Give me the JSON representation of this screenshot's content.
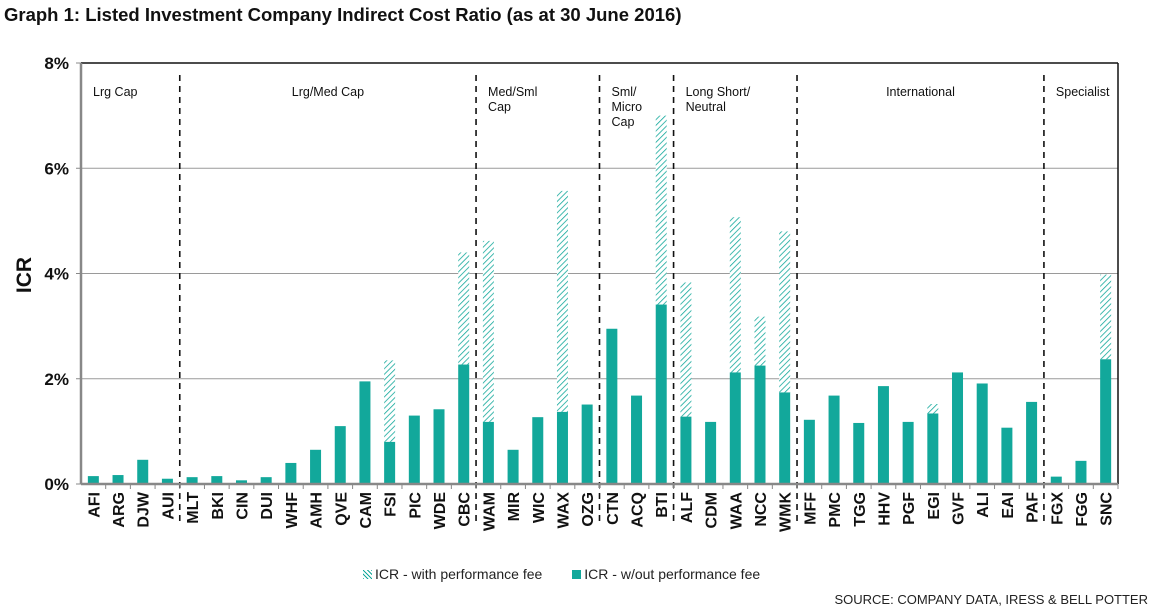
{
  "title": "Graph 1: Listed Investment Company Indirect Cost Ratio (as at 30 June 2016)",
  "source": "SOURCE: COMPANY DATA, IRESS & BELL POTTER",
  "colors": {
    "bar": "#12A89B",
    "hatch": "#12A89B",
    "grid": "#9a9a9a",
    "axis": "#888888",
    "divider": "#111111"
  },
  "chart_data": {
    "type": "bar",
    "title": "Graph 1: Listed Investment Company Indirect Cost Ratio (as at 30 June 2016)",
    "xlabel": "",
    "ylabel": "ICR",
    "ylim": [
      0,
      8
    ],
    "yticks": [
      "0%",
      "2%",
      "4%",
      "6%",
      "8%"
    ],
    "ytick_values": [
      0,
      2,
      4,
      6,
      8
    ],
    "grid": true,
    "legend_position": "bottom",
    "legend": [
      "ICR - with performance fee",
      "ICR - w/out performance fee"
    ],
    "categories": [
      "AFI",
      "ARG",
      "DJW",
      "AUI",
      "MLT",
      "BKI",
      "CIN",
      "DUI",
      "WHF",
      "AMH",
      "QVE",
      "CAM",
      "FSI",
      "PIC",
      "WDE",
      "CBC",
      "WAM",
      "MIR",
      "WIC",
      "WAX",
      "OZG",
      "CTN",
      "ACQ",
      "BTI",
      "ALF",
      "CDM",
      "WAA",
      "NCC",
      "WMK",
      "MFF",
      "PMC",
      "TGG",
      "HHV",
      "PGF",
      "EGI",
      "GVF",
      "ALI",
      "EAI",
      "PAF",
      "FGX",
      "FGG",
      "SNC"
    ],
    "series": [
      {
        "name": "ICR - w/out performance fee",
        "style": "solid",
        "values": [
          0.15,
          0.17,
          0.46,
          0.1,
          0.13,
          0.15,
          0.07,
          0.13,
          0.4,
          0.65,
          1.1,
          1.95,
          0.8,
          1.3,
          1.42,
          2.27,
          1.18,
          0.65,
          1.27,
          1.37,
          1.51,
          2.95,
          1.68,
          3.41,
          1.28,
          1.18,
          2.12,
          2.25,
          1.74,
          1.22,
          1.68,
          1.16,
          1.86,
          1.18,
          1.34,
          2.12,
          1.91,
          1.07,
          1.56,
          0.14,
          0.44,
          2.37
        ]
      },
      {
        "name": "ICR - with performance fee",
        "style": "hatched",
        "values": [
          null,
          null,
          null,
          null,
          null,
          null,
          null,
          null,
          null,
          null,
          null,
          null,
          2.35,
          null,
          null,
          4.4,
          4.62,
          null,
          null,
          5.57,
          null,
          null,
          null,
          7.0,
          3.83,
          null,
          5.07,
          3.18,
          4.8,
          null,
          null,
          null,
          null,
          null,
          1.52,
          null,
          null,
          null,
          null,
          null,
          null,
          3.98
        ]
      }
    ],
    "groups": [
      {
        "label": [
          "Lrg Cap"
        ],
        "start": 0,
        "count": 4
      },
      {
        "label": [
          "Lrg/Med Cap"
        ],
        "start": 4,
        "count": 12
      },
      {
        "label": [
          "Med/Sml",
          "Cap"
        ],
        "start": 16,
        "count": 5
      },
      {
        "label": [
          "Sml/",
          "Micro",
          "Cap"
        ],
        "start": 21,
        "count": 3
      },
      {
        "label": [
          "Long Short/",
          "Neutral"
        ],
        "start": 24,
        "count": 5
      },
      {
        "label": [
          "International"
        ],
        "start": 29,
        "count": 10
      },
      {
        "label": [
          "Specialist"
        ],
        "start": 39,
        "count": 3
      }
    ]
  }
}
